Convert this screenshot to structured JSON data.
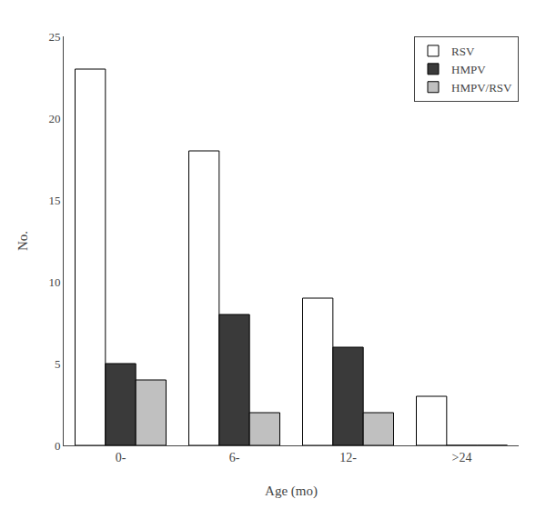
{
  "chart_data": {
    "type": "bar",
    "categories": [
      "0-",
      "6-",
      "12-",
      ">24"
    ],
    "series": [
      {
        "name": "RSV",
        "color": "#ffffff",
        "values": [
          23,
          18,
          9,
          3
        ]
      },
      {
        "name": "HMPV",
        "color": "#3a3a3a",
        "values": [
          5,
          8,
          6,
          0
        ]
      },
      {
        "name": "HMPV/RSV",
        "color": "#c0c0c0",
        "values": [
          4,
          2,
          2,
          0
        ]
      }
    ],
    "xlabel": "Age (mo)",
    "ylabel": "No.",
    "ylim": [
      0,
      25
    ],
    "yticks": [
      0,
      5,
      10,
      15,
      20,
      25
    ],
    "grid": false,
    "legend": "upper right"
  }
}
